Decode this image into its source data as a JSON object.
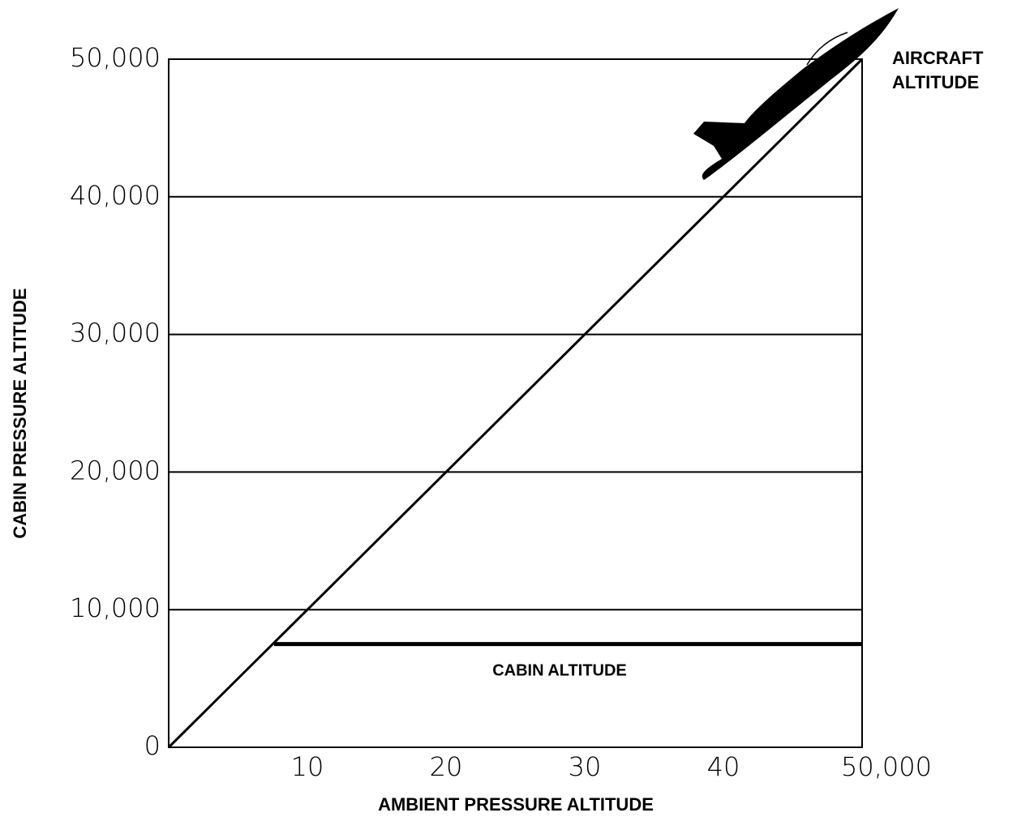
{
  "chart_data": {
    "type": "line",
    "x_label": "AMBIENT PRESSURE ALTITUDE",
    "y_label": "CABIN PRESSURE ALTITUDE",
    "xlim": [
      0,
      50000
    ],
    "ylim": [
      0,
      50000
    ],
    "xticks": [
      {
        "value": 10000,
        "label": "10"
      },
      {
        "value": 20000,
        "label": "20"
      },
      {
        "value": 30000,
        "label": "30"
      },
      {
        "value": 40000,
        "label": "40"
      },
      {
        "value": 50000,
        "label": "50,000"
      }
    ],
    "yticks": [
      0,
      {
        "value": 10000,
        "label": "10,000"
      },
      {
        "value": 20000,
        "label": "20,000"
      },
      {
        "value": 30000,
        "label": "30,000"
      },
      {
        "value": 40000,
        "label": "40,000"
      },
      {
        "value": 50000,
        "label": "50,000"
      }
    ],
    "grid": "y",
    "series": [
      {
        "name": "AIRCRAFT ALTITUDE",
        "color": "#000000",
        "x": [
          0,
          50000
        ],
        "values": [
          0,
          50000
        ]
      },
      {
        "name": "CABIN ALTITUDE",
        "color": "#000000",
        "x": [
          7600,
          50000
        ],
        "values": [
          7500,
          7500
        ]
      }
    ]
  }
}
